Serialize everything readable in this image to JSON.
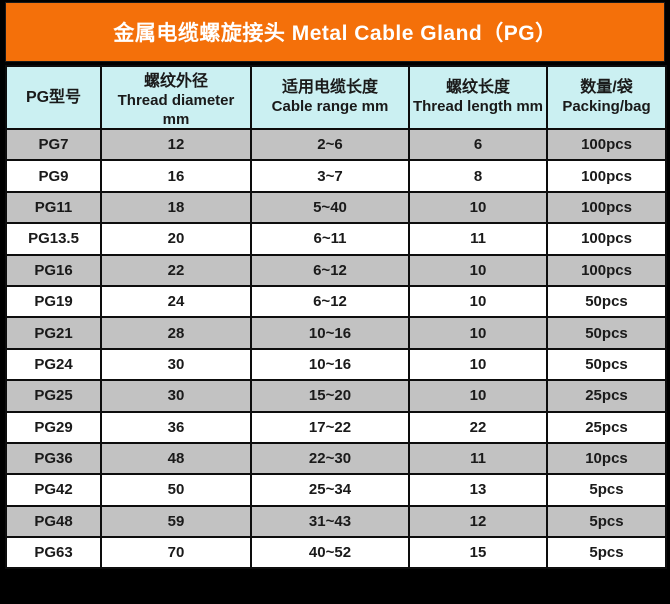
{
  "title": "金属电缆螺旋接头 Metal Cable Gland（PG）",
  "colors": {
    "title_bar_bg": "#f4700a",
    "title_text": "#ffffff",
    "header_bg": "#cbf0f2",
    "row_gray": "#c2c2c2",
    "row_white": "#ffffff",
    "border": "#0d0d0d",
    "outer_frame": "#000000"
  },
  "table": {
    "headers": [
      {
        "cn": "PG型号",
        "en": "",
        "unit": ""
      },
      {
        "cn": "螺纹外径",
        "en": "Thread diameter",
        "unit": "mm"
      },
      {
        "cn": "适用电缆长度",
        "en": "Cable range mm",
        "unit": ""
      },
      {
        "cn": "螺纹长度",
        "en": "Thread length mm",
        "unit": ""
      },
      {
        "cn": "数量/袋",
        "en": "Packing/bag",
        "unit": ""
      }
    ],
    "rows": [
      [
        "PG7",
        "12",
        "2~6",
        "6",
        "100pcs"
      ],
      [
        "PG9",
        "16",
        "3~7",
        "8",
        "100pcs"
      ],
      [
        "PG11",
        "18",
        "5~40",
        "10",
        "100pcs"
      ],
      [
        "PG13.5",
        "20",
        "6~11",
        "11",
        "100pcs"
      ],
      [
        "PG16",
        "22",
        "6~12",
        "10",
        "100pcs"
      ],
      [
        "PG19",
        "24",
        "6~12",
        "10",
        "50pcs"
      ],
      [
        "PG21",
        "28",
        "10~16",
        "10",
        "50pcs"
      ],
      [
        "PG24",
        "30",
        "10~16",
        "10",
        "50pcs"
      ],
      [
        "PG25",
        "30",
        "15~20",
        "10",
        "25pcs"
      ],
      [
        "PG29",
        "36",
        "17~22",
        "22",
        "25pcs"
      ],
      [
        "PG36",
        "48",
        "22~30",
        "11",
        "10pcs"
      ],
      [
        "PG42",
        "50",
        "25~34",
        "13",
        "5pcs"
      ],
      [
        "PG48",
        "59",
        "31~43",
        "12",
        "5pcs"
      ],
      [
        "PG63",
        "70",
        "40~52",
        "15",
        "5pcs"
      ]
    ]
  }
}
